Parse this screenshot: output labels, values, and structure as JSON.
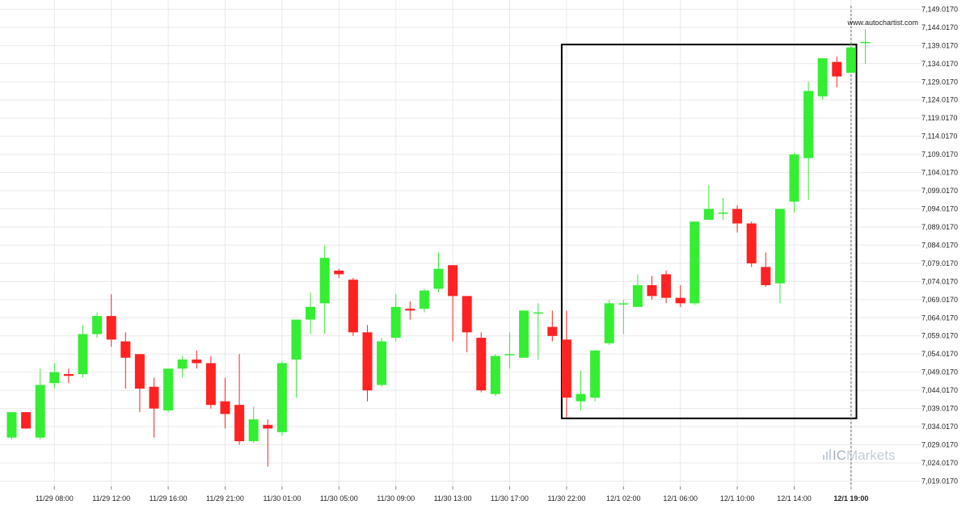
{
  "watermark": "www.autochartist.com",
  "brand": {
    "prefix": "IC",
    "name": "Markets"
  },
  "colors": {
    "bull": "#33ee33",
    "bear": "#ff2222",
    "grid": "#e9e9e9",
    "box": "#000000",
    "current_line": "#666666"
  },
  "chart_data": {
    "type": "candlestick",
    "title": "",
    "xlabel": "",
    "ylabel": "",
    "ylim": [
      7014.017,
      7150.0
    ],
    "y_ticks": [
      "7,149.0170",
      "7,144.0170",
      "7,139.0170",
      "7,134.0170",
      "7,129.0170",
      "7,124.0170",
      "7,119.0170",
      "7,114.0170",
      "7,109.0170",
      "7,104.0170",
      "7,099.0170",
      "7,094.0170",
      "7,089.0170",
      "7,084.0170",
      "7,079.0170",
      "7,074.0170",
      "7,069.0170",
      "7,064.0170",
      "7,059.0170",
      "7,054.0170",
      "7,049.0170",
      "7,044.0170",
      "7,039.0170",
      "7,034.0170",
      "7,029.0170",
      "7,024.0170",
      "7,019.0170"
    ],
    "x_ticks": [
      {
        "label": "11/29 08:00",
        "index": 3
      },
      {
        "label": "11/29 12:00",
        "index": 7
      },
      {
        "label": "11/29 16:00",
        "index": 11
      },
      {
        "label": "11/29 21:00",
        "index": 15
      },
      {
        "label": "11/30 01:00",
        "index": 19
      },
      {
        "label": "11/30 05:00",
        "index": 23
      },
      {
        "label": "11/30 09:00",
        "index": 27
      },
      {
        "label": "11/30 13:00",
        "index": 31
      },
      {
        "label": "11/30 17:00",
        "index": 35
      },
      {
        "label": "11/30 22:00",
        "index": 39
      },
      {
        "label": "12/1 02:00",
        "index": 43
      },
      {
        "label": "12/1 06:00",
        "index": 47
      },
      {
        "label": "12/1 10:00",
        "index": 51
      },
      {
        "label": "12/1 14:00",
        "index": 55
      },
      {
        "label": "12/1 19:00",
        "index": 59,
        "bold": true
      }
    ],
    "candles": [
      {
        "o": 7031.0,
        "h": 7038.0,
        "l": 7030.5,
        "c": 7038.0
      },
      {
        "o": 7038.0,
        "h": 7038.0,
        "l": 7033.5,
        "c": 7033.5
      },
      {
        "o": 7031.0,
        "h": 7050.0,
        "l": 7030.5,
        "c": 7045.5
      },
      {
        "o": 7046.0,
        "h": 7051.5,
        "l": 7044.5,
        "c": 7049.0
      },
      {
        "o": 7048.5,
        "h": 7050.0,
        "l": 7046.0,
        "c": 7048.0
      },
      {
        "o": 7048.5,
        "h": 7062.0,
        "l": 7047.5,
        "c": 7059.5
      },
      {
        "o": 7059.5,
        "h": 7065.5,
        "l": 7058.5,
        "c": 7064.5
      },
      {
        "o": 7064.5,
        "h": 7070.5,
        "l": 7056.0,
        "c": 7058.0
      },
      {
        "o": 7057.5,
        "h": 7060.0,
        "l": 7044.5,
        "c": 7053.0
      },
      {
        "o": 7054.0,
        "h": 7054.0,
        "l": 7038.0,
        "c": 7044.5
      },
      {
        "o": 7045.0,
        "h": 7047.5,
        "l": 7031.0,
        "c": 7039.0
      },
      {
        "o": 7038.5,
        "h": 7050.0,
        "l": 7038.0,
        "c": 7050.0
      },
      {
        "o": 7050.0,
        "h": 7053.5,
        "l": 7047.5,
        "c": 7052.5
      },
      {
        "o": 7052.5,
        "h": 7055.0,
        "l": 7050.0,
        "c": 7051.5
      },
      {
        "o": 7051.5,
        "h": 7053.5,
        "l": 7039.0,
        "c": 7040.0
      },
      {
        "o": 7041.0,
        "h": 7047.5,
        "l": 7033.5,
        "c": 7037.5
      },
      {
        "o": 7040.0,
        "h": 7054.0,
        "l": 7029.0,
        "c": 7030.0
      },
      {
        "o": 7030.0,
        "h": 7039.5,
        "l": 7029.5,
        "c": 7036.0
      },
      {
        "o": 7034.5,
        "h": 7036.0,
        "l": 7023.0,
        "c": 7033.5
      },
      {
        "o": 7032.5,
        "h": 7052.0,
        "l": 7031.5,
        "c": 7051.5
      },
      {
        "o": 7052.5,
        "h": 7063.5,
        "l": 7042.0,
        "c": 7063.5
      },
      {
        "o": 7063.5,
        "h": 7071.0,
        "l": 7059.5,
        "c": 7067.0
      },
      {
        "o": 7068.0,
        "h": 7084.0,
        "l": 7059.5,
        "c": 7080.5
      },
      {
        "o": 7077.0,
        "h": 7077.5,
        "l": 7075.0,
        "c": 7076.0
      },
      {
        "o": 7074.5,
        "h": 7075.0,
        "l": 7059.0,
        "c": 7060.0
      },
      {
        "o": 7060.0,
        "h": 7062.0,
        "l": 7041.0,
        "c": 7044.0
      },
      {
        "o": 7045.5,
        "h": 7058.5,
        "l": 7045.0,
        "c": 7057.5
      },
      {
        "o": 7058.5,
        "h": 7070.5,
        "l": 7057.5,
        "c": 7067.0
      },
      {
        "o": 7066.5,
        "h": 7068.5,
        "l": 7063.5,
        "c": 7066.0
      },
      {
        "o": 7066.5,
        "h": 7072.0,
        "l": 7065.5,
        "c": 7071.5
      },
      {
        "o": 7072.0,
        "h": 7082.0,
        "l": 7071.0,
        "c": 7077.5
      },
      {
        "o": 7078.5,
        "h": 7078.5,
        "l": 7057.5,
        "c": 7070.0
      },
      {
        "o": 7070.0,
        "h": 7070.0,
        "l": 7054.5,
        "c": 7060.0
      },
      {
        "o": 7058.5,
        "h": 7060.0,
        "l": 7043.5,
        "c": 7044.0
      },
      {
        "o": 7043.0,
        "h": 7054.0,
        "l": 7042.5,
        "c": 7053.5
      },
      {
        "o": 7054.0,
        "h": 7060.0,
        "l": 7050.0,
        "c": 7054.0
      },
      {
        "o": 7053.0,
        "h": 7066.0,
        "l": 7053.0,
        "c": 7066.0
      },
      {
        "o": 7065.5,
        "h": 7068.0,
        "l": 7052.5,
        "c": 7065.5
      },
      {
        "o": 7061.5,
        "h": 7066.0,
        "l": 7057.5,
        "c": 7059.0
      },
      {
        "o": 7058.0,
        "h": 7066.0,
        "l": 7036.5,
        "c": 7042.0
      },
      {
        "o": 7041.0,
        "h": 7049.5,
        "l": 7038.5,
        "c": 7043.0
      },
      {
        "o": 7042.0,
        "h": 7055.0,
        "l": 7041.0,
        "c": 7055.0
      },
      {
        "o": 7057.0,
        "h": 7069.0,
        "l": 7056.5,
        "c": 7068.0
      },
      {
        "o": 7068.0,
        "h": 7069.0,
        "l": 7059.5,
        "c": 7068.0
      },
      {
        "o": 7067.0,
        "h": 7076.0,
        "l": 7067.0,
        "c": 7073.0
      },
      {
        "o": 7073.0,
        "h": 7075.5,
        "l": 7069.0,
        "c": 7070.0
      },
      {
        "o": 7076.0,
        "h": 7077.0,
        "l": 7068.0,
        "c": 7069.5
      },
      {
        "o": 7069.5,
        "h": 7073.0,
        "l": 7067.0,
        "c": 7068.0
      },
      {
        "o": 7068.0,
        "h": 7090.5,
        "l": 7067.5,
        "c": 7090.5
      },
      {
        "o": 7091.0,
        "h": 7100.5,
        "l": 7091.0,
        "c": 7094.0
      },
      {
        "o": 7093.0,
        "h": 7097.0,
        "l": 7091.0,
        "c": 7093.0
      },
      {
        "o": 7094.0,
        "h": 7095.0,
        "l": 7087.5,
        "c": 7090.0
      },
      {
        "o": 7090.0,
        "h": 7090.5,
        "l": 7078.0,
        "c": 7079.0
      },
      {
        "o": 7078.0,
        "h": 7082.0,
        "l": 7072.5,
        "c": 7073.0
      },
      {
        "o": 7073.5,
        "h": 7094.0,
        "l": 7068.0,
        "c": 7094.0
      },
      {
        "o": 7096.0,
        "h": 7109.5,
        "l": 7093.0,
        "c": 7109.0
      },
      {
        "o": 7108.0,
        "h": 7129.0,
        "l": 7096.5,
        "c": 7126.5
      },
      {
        "o": 7125.0,
        "h": 7135.5,
        "l": 7124.0,
        "c": 7135.5
      },
      {
        "o": 7134.5,
        "h": 7136.0,
        "l": 7127.5,
        "c": 7130.5
      },
      {
        "o": 7131.5,
        "h": 7139.5,
        "l": 7131.5,
        "c": 7138.5
      },
      {
        "o": 7140.0,
        "h": 7143.5,
        "l": 7134.0,
        "c": 7140.0
      }
    ],
    "pattern_box": {
      "start_index": 39,
      "end_index": 60,
      "top": 7139.3,
      "bottom": 7036.3
    },
    "current_marker_index": 59
  }
}
